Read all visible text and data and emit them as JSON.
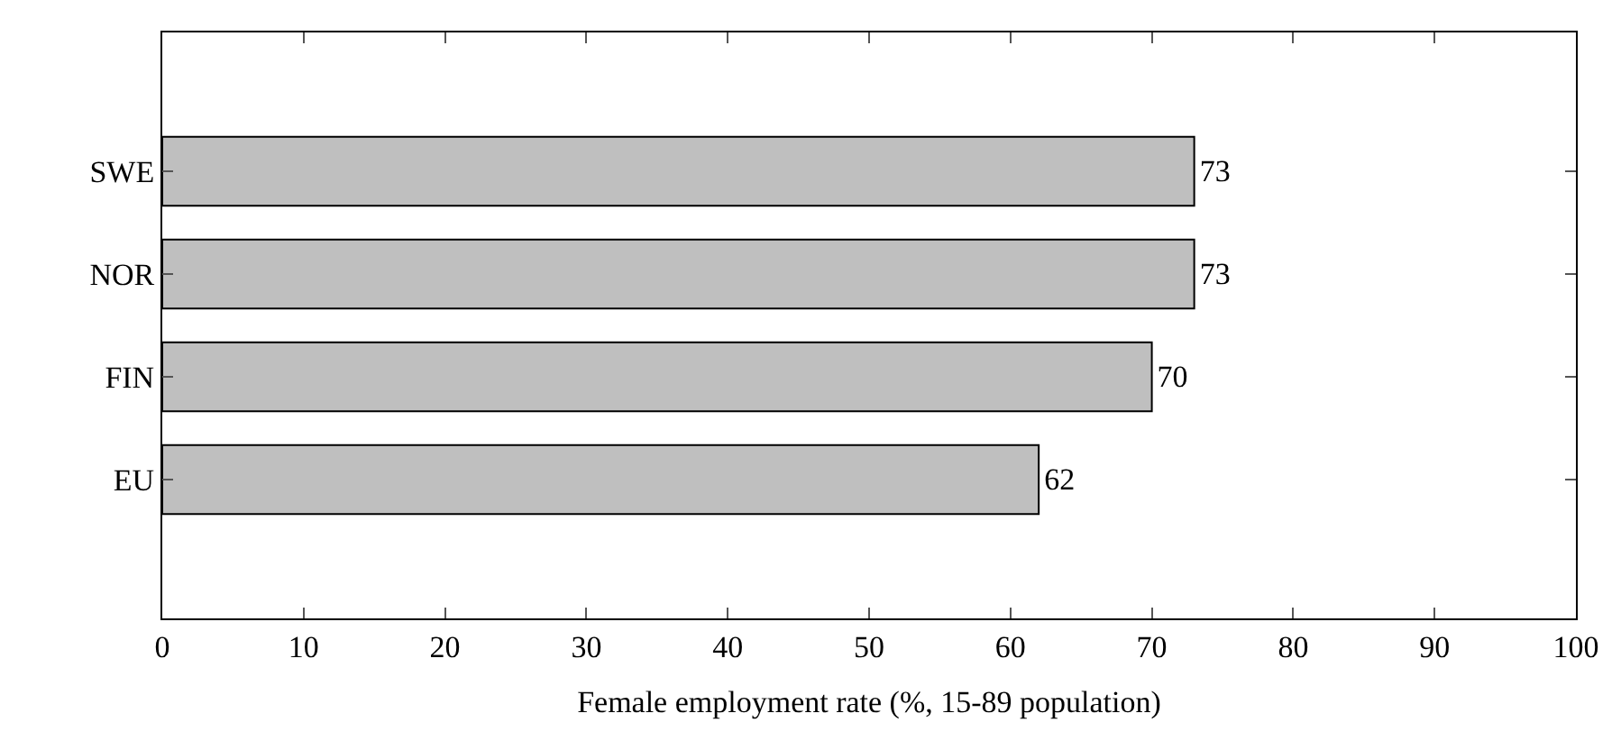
{
  "chart_data": {
    "type": "bar",
    "orientation": "horizontal",
    "xlabel": "Female employment rate (%, 15-89 population)",
    "categories": [
      "SWE",
      "NOR",
      "FIN",
      "EU"
    ],
    "values": [
      73,
      73,
      70,
      62
    ],
    "color": "#bfbfbf",
    "data_labels": true,
    "xlim": [
      0,
      100
    ],
    "xticks": [
      0,
      10,
      20,
      30,
      40,
      50,
      60,
      70,
      80,
      90,
      100
    ]
  }
}
